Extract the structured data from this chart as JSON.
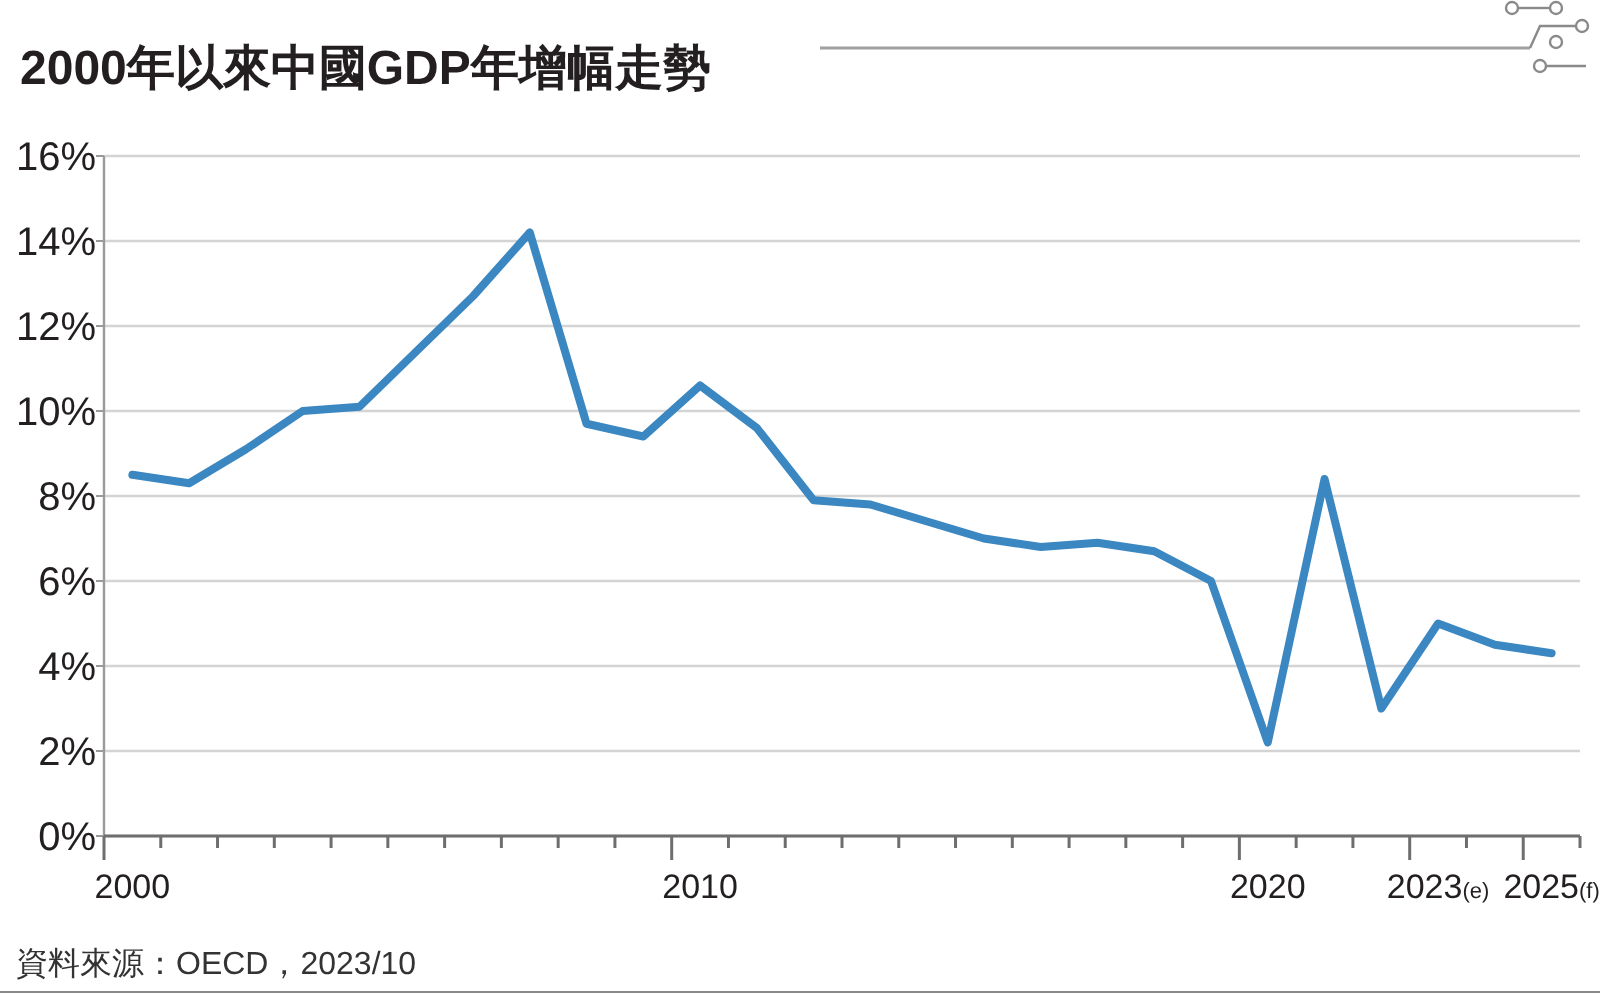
{
  "chart_data": {
    "type": "line",
    "title": "2000年以來中國GDP年增幅走勢",
    "categories": [
      "2000",
      null,
      null,
      null,
      null,
      null,
      null,
      null,
      null,
      null,
      "2010",
      null,
      null,
      null,
      null,
      null,
      null,
      null,
      null,
      null,
      "2020",
      null,
      null,
      "2023(e)",
      null,
      "2025(f)"
    ],
    "series": [
      {
        "color": "#3a87c2",
        "values": [
          8.5,
          8.3,
          9.1,
          10.0,
          10.1,
          11.4,
          12.7,
          14.2,
          9.7,
          9.4,
          10.6,
          9.6,
          7.9,
          7.8,
          7.4,
          7.0,
          6.8,
          6.9,
          6.7,
          6.0,
          2.2,
          8.4,
          3.0,
          5.0,
          4.5,
          4.3
        ]
      }
    ],
    "ylim": [
      0,
      16
    ],
    "yticks": [
      {
        "value": 0,
        "label": "0%"
      },
      {
        "value": 2,
        "label": "2%"
      },
      {
        "value": 4,
        "label": "4%"
      },
      {
        "value": 6,
        "label": "6%"
      },
      {
        "value": 8,
        "label": "8%"
      },
      {
        "value": 10,
        "label": "10%"
      },
      {
        "value": 12,
        "label": "12%"
      },
      {
        "value": 14,
        "label": "14%"
      },
      {
        "value": 16,
        "label": "16%"
      }
    ],
    "grid": "y",
    "marker": "none",
    "line_style": "solid",
    "annotations": [
      "資料來源：OECD，2023/10"
    ]
  }
}
